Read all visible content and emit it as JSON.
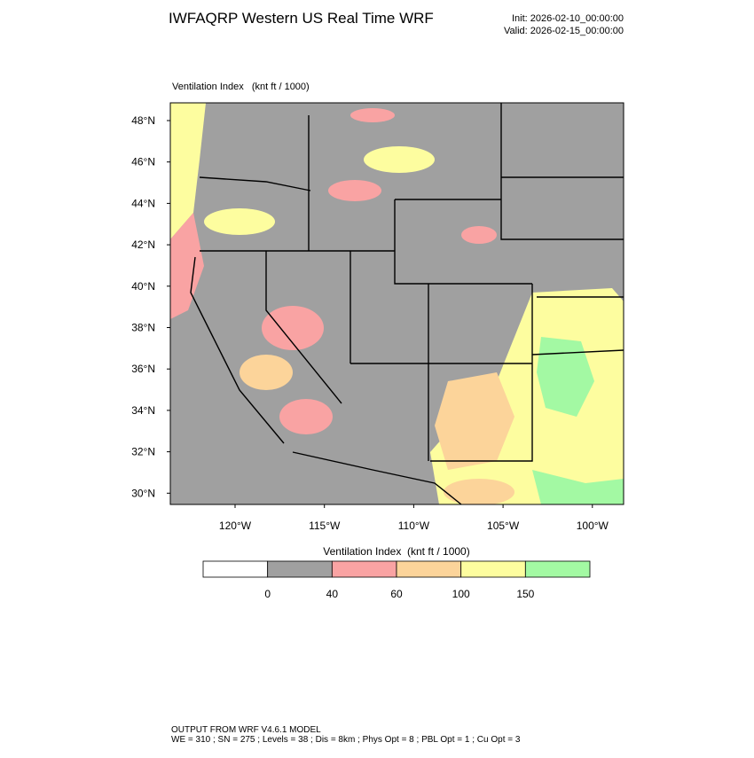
{
  "header": {
    "title": "IWFAQRP Western US Real Time WRF",
    "init": "Init: 2026-02-10_00:00:00",
    "valid": "Valid: 2026-02-15_00:00:00"
  },
  "map": {
    "label": "Ventilation Index   (knt ft / 1000)",
    "lat_labels": [
      "48°N",
      "46°N",
      "44°N",
      "42°N",
      "40°N",
      "38°N",
      "36°N",
      "34°N",
      "32°N",
      "30°N"
    ],
    "lon_labels": [
      "120°W",
      "115°W",
      "110°W",
      "105°W",
      "100°W"
    ]
  },
  "colorbar": {
    "title": "Ventilation Index  (knt ft / 1000)",
    "colors": [
      "#ffffff",
      "#a0a0a0",
      "#f9a3a3",
      "#fcd49a",
      "#fdfd9f",
      "#a3f9a3"
    ],
    "ticks": [
      "0",
      "40",
      "60",
      "100",
      "150"
    ]
  },
  "footer": {
    "line1": "OUTPUT FROM WRF V4.6.1 MODEL",
    "line2": "WE = 310 ; SN = 275 ; Levels = 38 ; Dis = 8km ; Phys Opt = 8 ; PBL Opt = 1 ; Cu Opt = 3"
  }
}
